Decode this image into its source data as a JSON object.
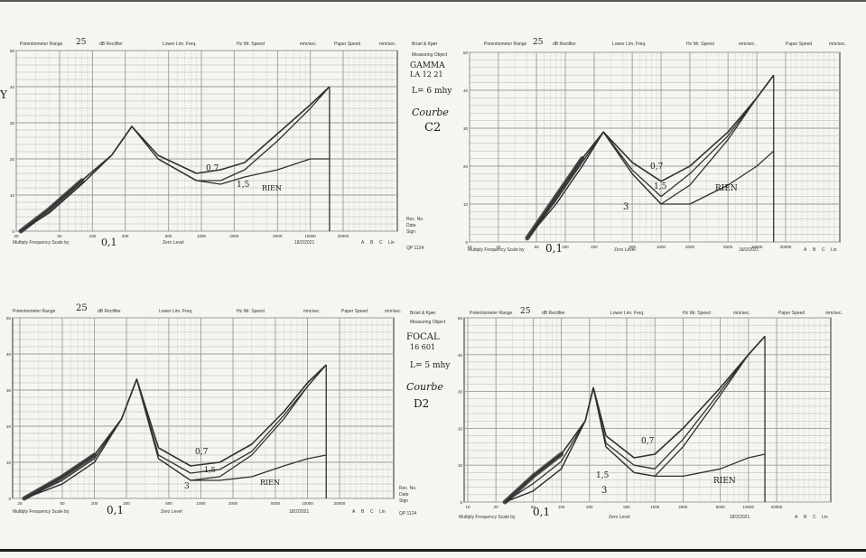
{
  "header": {
    "potentiometer_range_label": "Potentiometer Range",
    "range_value": "25",
    "db_rectifier_label": "dB Rectifier",
    "lower_lim_freq_label": "Lower Lim. Freq.",
    "wr_speed_label": "Hz Wr. Speed",
    "mm_sec_label": "mm/sec.",
    "paper_speed_label": "Paper Speed",
    "mm_sec2_label": "mm/sec.",
    "bk_label": "Brüel & Kjær",
    "measuring_object_label": "Measuring Object",
    "multiply_label": "Multiply Frequency Scale by",
    "zero_level_label": "Zero Level",
    "abc_labels": [
      "A",
      "B",
      "C",
      "Lin"
    ],
    "qp_label": "QP 1124",
    "rec_no_label": "Rec. No.",
    "date_label": "Date",
    "sign_label": "Sign"
  },
  "colors": {
    "paper": "#f6f5f1",
    "grid": "#9a9a9a",
    "ink": "#2b2b2b",
    "trace": "#303030"
  },
  "charts": [
    {
      "id": "top-left",
      "y_ticks": [
        "50",
        "40",
        "30",
        "20",
        "10",
        "0"
      ],
      "x_ticks": [
        "20",
        "50",
        "100",
        "200",
        "500",
        "1000",
        "2000",
        "5000",
        "10000",
        "20000"
      ],
      "multiplier_hand": "0,1",
      "date": "18/2/2021",
      "hand_notes": [],
      "curve_labels": [
        "0,7",
        "1,5",
        "RIEN"
      ]
    },
    {
      "id": "top-right",
      "y_ticks": [
        "50",
        "40",
        "30",
        "20",
        "10",
        "0"
      ],
      "x_ticks": [
        "10",
        "20",
        "50",
        "100",
        "200",
        "500",
        "1000",
        "2000",
        "5000",
        "10000",
        "20000"
      ],
      "multiplier_hand": "0,1",
      "date": "18/2/2021",
      "hand_notes": [
        "GAMMA",
        "LA 12 21",
        "L= 6 mhy",
        "Courbe",
        "C2"
      ],
      "curve_labels": [
        "0,7",
        "1,5",
        "3",
        "RIEN"
      ]
    },
    {
      "id": "bottom-left",
      "y_ticks": [
        "50",
        "40",
        "30",
        "20",
        "10",
        "0"
      ],
      "x_ticks": [
        "20",
        "50",
        "100",
        "200",
        "500",
        "1000",
        "2000",
        "5000",
        "10000",
        "20000"
      ],
      "multiplier_hand": "0,1",
      "date": "18/2/2021",
      "hand_notes": [],
      "curve_labels": [
        "0,7",
        "1,5",
        "3",
        "RIEN"
      ]
    },
    {
      "id": "bottom-right",
      "y_ticks": [
        "50",
        "40",
        "30",
        "20",
        "10",
        "0"
      ],
      "x_ticks": [
        "10",
        "20",
        "50",
        "100",
        "200",
        "500",
        "1000",
        "2000",
        "5000",
        "10000",
        "20000"
      ],
      "multiplier_hand": "0,1",
      "date": "18/2/2021",
      "hand_notes": [
        "FOCAL",
        "16 601",
        "L= 5 mhy",
        "Courbe",
        "D2"
      ],
      "curve_labels": [
        "0,7",
        "1,5",
        "3",
        "RIEN"
      ]
    }
  ],
  "chart_data": [
    {
      "type": "line",
      "title": "",
      "xlabel": "",
      "ylabel": "",
      "x_scale": "log",
      "xlim": [
        20,
        20000
      ],
      "ylim": [
        0,
        50
      ],
      "grid": true,
      "series": [
        {
          "name": "0,7",
          "x": [
            22,
            40,
            80,
            150,
            230,
            400,
            900,
            1500,
            2500,
            5000,
            10000,
            15000
          ],
          "y": [
            0,
            6,
            14,
            21,
            29,
            21,
            16,
            17,
            19,
            27,
            35,
            40
          ]
        },
        {
          "name": "1,5",
          "x": [
            22,
            40,
            80,
            150,
            230,
            400,
            900,
            1500,
            2500,
            5000,
            10000,
            15000
          ],
          "y": [
            0,
            5,
            13,
            21,
            29,
            20,
            14,
            14,
            17,
            25,
            34,
            40
          ]
        },
        {
          "name": "RIEN",
          "x": [
            22,
            40,
            80,
            150,
            230,
            400,
            900,
            1500,
            2500,
            5000,
            10000,
            15000
          ],
          "y": [
            0,
            5,
            13,
            21,
            29,
            20,
            14,
            13,
            15,
            17,
            20,
            20
          ]
        }
      ]
    },
    {
      "type": "line",
      "title": "",
      "xlabel": "",
      "ylabel": "",
      "x_scale": "log",
      "xlim": [
        10,
        20000
      ],
      "ylim": [
        0,
        50
      ],
      "grid": true,
      "series": [
        {
          "name": "0,7",
          "x": [
            40,
            80,
            150,
            250,
            500,
            1000,
            2000,
            5000,
            10000,
            15000
          ],
          "y": [
            1,
            12,
            22,
            29,
            21,
            16,
            20,
            29,
            38,
            44
          ]
        },
        {
          "name": "1,5",
          "x": [
            40,
            80,
            150,
            250,
            500,
            1000,
            2000,
            5000,
            10000,
            15000
          ],
          "y": [
            1,
            11,
            21,
            29,
            19,
            12,
            18,
            28,
            38,
            44
          ]
        },
        {
          "name": "3",
          "x": [
            40,
            80,
            150,
            250,
            500,
            1000,
            2000,
            5000,
            10000,
            15000
          ],
          "y": [
            1,
            10,
            20,
            29,
            18,
            10,
            15,
            27,
            38,
            44
          ]
        },
        {
          "name": "RIEN",
          "x": [
            40,
            80,
            150,
            250,
            500,
            1000,
            2000,
            5000,
            10000,
            15000
          ],
          "y": [
            1,
            10,
            20,
            29,
            18,
            10,
            10,
            15,
            20,
            24
          ]
        }
      ]
    },
    {
      "type": "line",
      "title": "",
      "xlabel": "",
      "ylabel": "",
      "x_scale": "log",
      "xlim": [
        20,
        20000
      ],
      "ylim": [
        0,
        50
      ],
      "grid": true,
      "series": [
        {
          "name": "0,7",
          "x": [
            22,
            50,
            100,
            180,
            250,
            400,
            800,
            1500,
            3000,
            6000,
            10000,
            15000
          ],
          "y": [
            0,
            6,
            12,
            22,
            33,
            14,
            9,
            10,
            15,
            24,
            32,
            37
          ]
        },
        {
          "name": "1,5",
          "x": [
            22,
            50,
            100,
            180,
            250,
            400,
            800,
            1500,
            3000,
            6000,
            10000,
            15000
          ],
          "y": [
            0,
            5,
            11,
            22,
            33,
            12,
            7,
            8,
            13,
            23,
            31,
            37
          ]
        },
        {
          "name": "3",
          "x": [
            22,
            50,
            100,
            180,
            250,
            400,
            800,
            1500,
            3000,
            6000,
            10000,
            15000
          ],
          "y": [
            0,
            4,
            10,
            22,
            33,
            11,
            5,
            6,
            12,
            22,
            31,
            37
          ]
        },
        {
          "name": "RIEN",
          "x": [
            22,
            50,
            100,
            180,
            250,
            400,
            800,
            1500,
            3000,
            6000,
            10000,
            15000
          ],
          "y": [
            0,
            4,
            10,
            22,
            33,
            11,
            5,
            5,
            6,
            9,
            11,
            12
          ]
        }
      ]
    },
    {
      "type": "line",
      "title": "",
      "xlabel": "",
      "ylabel": "",
      "x_scale": "log",
      "xlim": [
        10,
        20000
      ],
      "ylim": [
        0,
        50
      ],
      "grid": true,
      "series": [
        {
          "name": "0,7",
          "x": [
            25,
            50,
            100,
            180,
            220,
            300,
            600,
            1000,
            2000,
            5000,
            10000,
            15000
          ],
          "y": [
            0,
            7,
            13,
            22,
            31,
            18,
            12,
            13,
            20,
            31,
            40,
            45
          ]
        },
        {
          "name": "1,5",
          "x": [
            25,
            50,
            100,
            180,
            220,
            300,
            600,
            1000,
            2000,
            5000,
            10000,
            15000
          ],
          "y": [
            0,
            5,
            11,
            22,
            31,
            16,
            10,
            9,
            17,
            30,
            40,
            45
          ]
        },
        {
          "name": "3",
          "x": [
            25,
            50,
            100,
            180,
            220,
            300,
            600,
            1000,
            2000,
            5000,
            10000,
            15000
          ],
          "y": [
            0,
            3,
            9,
            22,
            31,
            15,
            8,
            7,
            15,
            29,
            40,
            45
          ]
        },
        {
          "name": "RIEN",
          "x": [
            25,
            50,
            100,
            180,
            220,
            300,
            600,
            1000,
            2000,
            5000,
            10000,
            15000
          ],
          "y": [
            0,
            3,
            9,
            22,
            31,
            15,
            8,
            7,
            7,
            9,
            12,
            13
          ]
        }
      ]
    }
  ]
}
